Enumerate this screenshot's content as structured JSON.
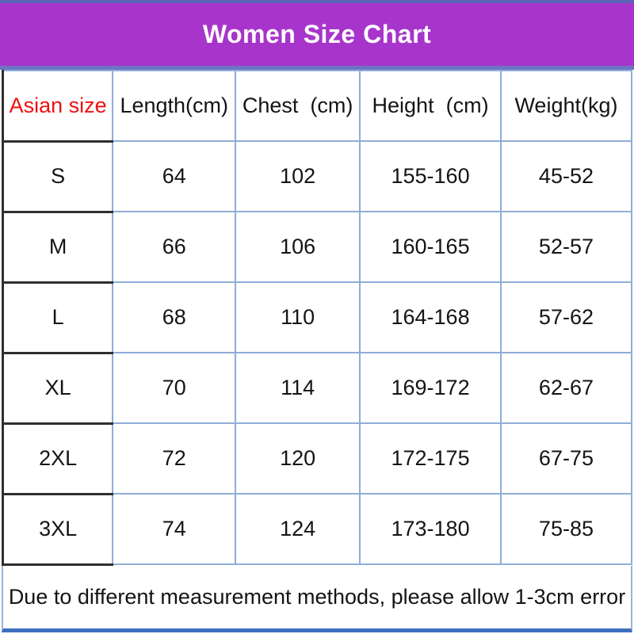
{
  "banner": {
    "title": "Women Size Chart"
  },
  "table": {
    "columns": [
      {
        "label": "Asian size"
      },
      {
        "label": "Length(cm)"
      },
      {
        "label": "Chest  (cm)"
      },
      {
        "label": "Height  (cm)"
      },
      {
        "label": "Weight(kg)"
      }
    ],
    "rows": [
      {
        "size": "S",
        "length": "64",
        "chest": "102",
        "height": "155-160",
        "weight": "45-52"
      },
      {
        "size": "M",
        "length": "66",
        "chest": "106",
        "height": "160-165",
        "weight": "52-57"
      },
      {
        "size": "L",
        "length": "68",
        "chest": "110",
        "height": "164-168",
        "weight": "57-62"
      },
      {
        "size": "XL",
        "length": "70",
        "chest": "114",
        "height": "169-172",
        "weight": "62-67"
      },
      {
        "size": "2XL",
        "length": "72",
        "chest": "120",
        "height": "172-175",
        "weight": "67-75"
      },
      {
        "size": "3XL",
        "length": "74",
        "chest": "124",
        "height": "173-180",
        "weight": "75-85"
      }
    ]
  },
  "footer": {
    "note": "Due to different measurement methods, please allow 1-3cm error"
  },
  "colors": {
    "banner_background": "#a835cb",
    "banner_border": "#6d73c3",
    "title_text": "#ffffff",
    "asian_size_text": "#ef1010",
    "table_text": "#141414",
    "blue_border": "#8fadd8",
    "dark_border": "#2f2f2f",
    "bottom_line": "#3d6fc0"
  },
  "chart_data": {
    "type": "table",
    "title": "Women Size Chart",
    "columns": [
      "Asian size",
      "Length(cm)",
      "Chest (cm)",
      "Height (cm)",
      "Weight(kg)"
    ],
    "rows": [
      [
        "S",
        "64",
        "102",
        "155-160",
        "45-52"
      ],
      [
        "M",
        "66",
        "106",
        "160-165",
        "52-57"
      ],
      [
        "L",
        "68",
        "110",
        "164-168",
        "57-62"
      ],
      [
        "XL",
        "70",
        "114",
        "169-172",
        "62-67"
      ],
      [
        "2XL",
        "72",
        "120",
        "172-175",
        "67-75"
      ],
      [
        "3XL",
        "74",
        "124",
        "173-180",
        "75-85"
      ]
    ],
    "footnote": "Due to different measurement methods, please allow 1-3cm error"
  }
}
